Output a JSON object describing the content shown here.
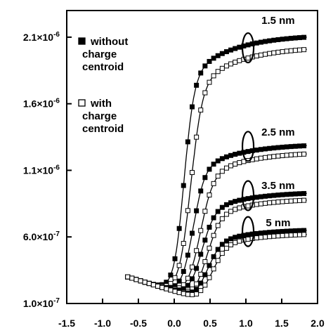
{
  "chart_data": {
    "type": "line",
    "xlim": [
      -1.5,
      2.0
    ],
    "ylim": [
      1e-07,
      2.3e-06
    ],
    "x_ticks": [
      -1.5,
      -1.0,
      -0.5,
      0.0,
      0.5,
      1.0,
      1.5,
      2.0
    ],
    "x_tick_labels": [
      "-1.5",
      "-1.0",
      "-0.5",
      "0.0",
      "0.5",
      "1.0",
      "1.5",
      "2.0"
    ],
    "y_ticks": [
      1e-07,
      6e-07,
      1.1e-06,
      1.6e-06,
      2.1e-06
    ],
    "y_tick_labels": [
      "1.0×10-7",
      "6.0×10-7",
      "1.1×10-6",
      "1.6×10-6",
      "2.1×10-6"
    ],
    "grid": false,
    "legend": {
      "placement": "top-left",
      "entries": [
        {
          "marker": "filled-square",
          "lines": [
            "without",
            "charge",
            "centroid"
          ]
        },
        {
          "marker": "open-square",
          "lines": [
            "with",
            "charge",
            "centroid"
          ]
        }
      ]
    },
    "annotations": [
      {
        "text": "1.5 nm",
        "x": 1.45,
        "y": 2.2e-06
      },
      {
        "text": "2.5 nm",
        "x": 1.45,
        "y": 1.36e-06
      },
      {
        "text": "3.5 nm",
        "x": 1.45,
        "y": 9.6e-07
      },
      {
        "text": "5 nm",
        "x": 1.45,
        "y": 6.8e-07
      }
    ],
    "ellipses": [
      {
        "x": 1.03,
        "y": 2.02e-06
      },
      {
        "x": 1.03,
        "y": 1.28e-06
      },
      {
        "x": 1.03,
        "y": 9.1e-07
      },
      {
        "x": 1.03,
        "y": 6.4e-07
      }
    ],
    "series": [
      {
        "group": "1.5 nm",
        "marker": "filled",
        "vth": 0.13,
        "width": 0.07,
        "max": 2.12e-06
      },
      {
        "group": "1.5 nm",
        "marker": "open",
        "vth": 0.22,
        "width": 0.08,
        "max": 2.03e-06
      },
      {
        "group": "2.5 nm",
        "marker": "filled",
        "vth": 0.25,
        "width": 0.08,
        "max": 1.3e-06
      },
      {
        "group": "2.5 nm",
        "marker": "open",
        "vth": 0.35,
        "width": 0.09,
        "max": 1.24e-06
      },
      {
        "group": "3.5 nm",
        "marker": "filled",
        "vth": 0.37,
        "width": 0.09,
        "max": 9.4e-07
      },
      {
        "group": "3.5 nm",
        "marker": "open",
        "vth": 0.45,
        "width": 0.09,
        "max": 8.9e-07
      },
      {
        "group": "5 nm",
        "marker": "filled",
        "vth": 0.46,
        "width": 0.09,
        "max": 6.6e-07
      },
      {
        "group": "5 nm",
        "marker": "open",
        "vth": 0.53,
        "width": 0.09,
        "max": 6.3e-07
      }
    ]
  }
}
